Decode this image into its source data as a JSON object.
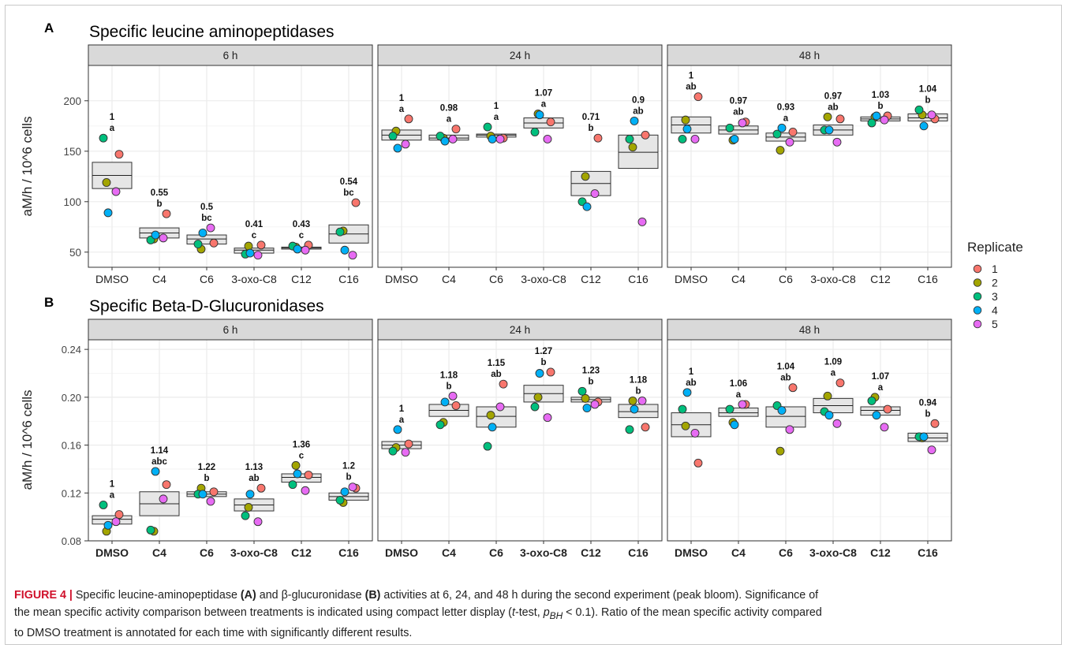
{
  "colors": {
    "rep1": "#F8766D",
    "rep2": "#A3A500",
    "rep3": "#00BF7D",
    "rep4": "#00B0F6",
    "rep5": "#E76BF3",
    "box_fill": "#e6e6e6",
    "strip": "#d9d9d9",
    "grid": "#ebebeb",
    "caption_label": "#d0112b"
  },
  "legend": {
    "title": "Replicate",
    "items": [
      "1",
      "2",
      "3",
      "4",
      "5"
    ]
  },
  "caption": {
    "label": "FIGURE 4 |",
    "line1_a": " Specific leucine-aminopeptidase ",
    "line1_b": "(A)",
    "line1_c": " and β-glucuronidase ",
    "line1_d": "(B)",
    "line1_e": " activities at 6, 24, and 48 h during the second experiment (peak bloom). Significance of",
    "line2_a": "the mean specific activity comparison between treatments is indicated using compact letter display (",
    "line2_t": "t",
    "line2_b": "-test, ",
    "line2_p": "p",
    "line2_sub": "BH",
    "line2_c": " < 0.1). Ratio of the mean specific activity compared",
    "line3": "to DMSO treatment is annotated for each time with significantly different results.",
    "line4": "results."
  },
  "chart_data": [
    {
      "type": "scatter",
      "panel_letter": "A",
      "title": "Specific leucine aminopeptidases",
      "ylabel": "aM/h / 10^6 cells",
      "xlabel": "",
      "ylim": [
        35,
        235
      ],
      "yticks": [
        50,
        100,
        150,
        200
      ],
      "ytick_labels": [
        "50",
        "100",
        "150",
        "200"
      ],
      "categories": [
        "DMSO",
        "C4",
        "C6",
        "3-oxo-C8",
        "C12",
        "C16"
      ],
      "facets": [
        {
          "name": "6 h",
          "boxes": [
            {
              "mean": 126,
              "low": 113,
              "high": 139,
              "ratio": "1",
              "letters": "a"
            },
            {
              "mean": 69,
              "low": 64,
              "high": 74,
              "ratio": "0.55",
              "letters": "b"
            },
            {
              "mean": 63,
              "low": 58,
              "high": 67,
              "ratio": "0.5",
              "letters": "bc"
            },
            {
              "mean": 52,
              "low": 49,
              "high": 54,
              "ratio": "0.41",
              "letters": "c"
            },
            {
              "mean": 54,
              "low": 53,
              "high": 55,
              "ratio": "0.43",
              "letters": "c"
            },
            {
              "mean": 68,
              "low": 59,
              "high": 77,
              "ratio": "0.54",
              "letters": "bc"
            }
          ],
          "points": [
            [
              147,
              119,
              163,
              89,
              110
            ],
            [
              88,
              63,
              62,
              67,
              64
            ],
            [
              59,
              53,
              58,
              69,
              74
            ],
            [
              57,
              56,
              48,
              49,
              47
            ],
            [
              57,
              55,
              56,
              53,
              52
            ],
            [
              99,
              71,
              70,
              52,
              47
            ]
          ]
        },
        {
          "name": "24 h",
          "boxes": [
            {
              "mean": 166,
              "low": 161,
              "high": 171,
              "ratio": "1",
              "letters": "a"
            },
            {
              "mean": 163,
              "low": 161,
              "high": 166,
              "ratio": "0.98",
              "letters": "a"
            },
            {
              "mean": 166,
              "low": 164,
              "high": 167,
              "ratio": "1",
              "letters": "a"
            },
            {
              "mean": 178,
              "low": 173,
              "high": 183,
              "ratio": "1.07",
              "letters": "a"
            },
            {
              "mean": 118,
              "low": 106,
              "high": 130,
              "ratio": "0.71",
              "letters": "b"
            },
            {
              "mean": 149,
              "low": 133,
              "high": 166,
              "ratio": "0.9",
              "letters": "ab"
            }
          ],
          "points": [
            [
              182,
              170,
              165,
              153,
              157
            ],
            [
              172,
              163,
              165,
              160,
              162
            ],
            [
              163,
              165,
              174,
              162,
              162
            ],
            [
              179,
              187,
              169,
              186,
              162
            ],
            [
              163,
              125,
              100,
              95,
              108
            ],
            [
              166,
              154,
              162,
              180,
              80
            ]
          ]
        },
        {
          "name": "48 h",
          "boxes": [
            {
              "mean": 176,
              "low": 168,
              "high": 184,
              "ratio": "1",
              "letters": "ab"
            },
            {
              "mean": 171,
              "low": 167,
              "high": 175,
              "ratio": "0.97",
              "letters": "ab"
            },
            {
              "mean": 164,
              "low": 160,
              "high": 168,
              "ratio": "0.93",
              "letters": "a"
            },
            {
              "mean": 171,
              "low": 166,
              "high": 176,
              "ratio": "0.97",
              "letters": "ab"
            },
            {
              "mean": 182,
              "low": 180,
              "high": 184,
              "ratio": "1.03",
              "letters": "b"
            },
            {
              "mean": 183,
              "low": 180,
              "high": 187,
              "ratio": "1.04",
              "letters": "b"
            }
          ],
          "points": [
            [
              204,
              181,
              162,
              172,
              162
            ],
            [
              179,
              161,
              173,
              162,
              178
            ],
            [
              169,
              151,
              167,
              173,
              159
            ],
            [
              182,
              184,
              171,
              171,
              159
            ],
            [
              185,
              184,
              178,
              185,
              181
            ],
            [
              182,
              186,
              191,
              175,
              186
            ]
          ]
        }
      ]
    },
    {
      "type": "scatter",
      "panel_letter": "B",
      "title": "Specific Beta-D-Glucuronidases",
      "ylabel": "aM/h / 10^6 cells",
      "xlabel": "",
      "ylim": [
        0.08,
        0.248
      ],
      "yticks": [
        0.08,
        0.12,
        0.16,
        0.2,
        0.24
      ],
      "ytick_labels": [
        "0.08",
        "0.12",
        "0.16",
        "0.20",
        "0.24"
      ],
      "categories": [
        "DMSO",
        "C4",
        "C6",
        "3-oxo-C8",
        "C12",
        "C16"
      ],
      "facets": [
        {
          "name": "6 h",
          "boxes": [
            {
              "mean": 0.098,
              "low": 0.094,
              "high": 0.101,
              "ratio": "1",
              "letters": "a"
            },
            {
              "mean": 0.111,
              "low": 0.101,
              "high": 0.121,
              "ratio": "1.14",
              "letters": "abc"
            },
            {
              "mean": 0.119,
              "low": 0.117,
              "high": 0.121,
              "ratio": "1.22",
              "letters": "b"
            },
            {
              "mean": 0.11,
              "low": 0.105,
              "high": 0.115,
              "ratio": "1.13",
              "letters": "ab"
            },
            {
              "mean": 0.133,
              "low": 0.129,
              "high": 0.136,
              "ratio": "1.36",
              "letters": "c"
            },
            {
              "mean": 0.117,
              "low": 0.114,
              "high": 0.12,
              "ratio": "1.2",
              "letters": "b"
            }
          ],
          "points": [
            [
              0.102,
              0.088,
              0.11,
              0.093,
              0.096
            ],
            [
              0.127,
              0.088,
              0.089,
              0.138,
              0.115
            ],
            [
              0.121,
              0.124,
              0.119,
              0.119,
              0.113
            ],
            [
              0.124,
              0.108,
              0.101,
              0.119,
              0.096
            ],
            [
              0.135,
              0.143,
              0.127,
              0.136,
              0.122
            ],
            [
              0.124,
              0.112,
              0.114,
              0.121,
              0.125
            ]
          ]
        },
        {
          "name": "24 h",
          "boxes": [
            {
              "mean": 0.16,
              "low": 0.157,
              "high": 0.163,
              "ratio": "1",
              "letters": "a"
            },
            {
              "mean": 0.189,
              "low": 0.184,
              "high": 0.194,
              "ratio": "1.18",
              "letters": "b"
            },
            {
              "mean": 0.184,
              "low": 0.175,
              "high": 0.192,
              "ratio": "1.15",
              "letters": "ab"
            },
            {
              "mean": 0.203,
              "low": 0.196,
              "high": 0.21,
              "ratio": "1.27",
              "letters": "b"
            },
            {
              "mean": 0.198,
              "low": 0.196,
              "high": 0.2,
              "ratio": "1.23",
              "letters": "b"
            },
            {
              "mean": 0.188,
              "low": 0.183,
              "high": 0.194,
              "ratio": "1.18",
              "letters": "b"
            }
          ],
          "points": [
            [
              0.161,
              0.158,
              0.155,
              0.173,
              0.154
            ],
            [
              0.193,
              0.179,
              0.177,
              0.196,
              0.201
            ],
            [
              0.211,
              0.185,
              0.159,
              0.175,
              0.192
            ],
            [
              0.221,
              0.2,
              0.192,
              0.22,
              0.183
            ],
            [
              0.196,
              0.199,
              0.205,
              0.191,
              0.194
            ],
            [
              0.175,
              0.197,
              0.173,
              0.19,
              0.197
            ]
          ]
        },
        {
          "name": "48 h",
          "boxes": [
            {
              "mean": 0.177,
              "low": 0.167,
              "high": 0.187,
              "ratio": "1",
              "letters": "ab"
            },
            {
              "mean": 0.187,
              "low": 0.184,
              "high": 0.191,
              "ratio": "1.06",
              "letters": "a"
            },
            {
              "mean": 0.184,
              "low": 0.175,
              "high": 0.192,
              "ratio": "1.04",
              "letters": "ab"
            },
            {
              "mean": 0.193,
              "low": 0.187,
              "high": 0.199,
              "ratio": "1.09",
              "letters": "a"
            },
            {
              "mean": 0.189,
              "low": 0.185,
              "high": 0.192,
              "ratio": "1.07",
              "letters": "a"
            },
            {
              "mean": 0.166,
              "low": 0.163,
              "high": 0.17,
              "ratio": "0.94",
              "letters": "b"
            }
          ],
          "points": [
            [
              0.145,
              0.176,
              0.19,
              0.204,
              0.17
            ],
            [
              0.194,
              0.179,
              0.19,
              0.177,
              0.194
            ],
            [
              0.208,
              0.155,
              0.193,
              0.189,
              0.173
            ],
            [
              0.212,
              0.201,
              0.188,
              0.185,
              0.178
            ],
            [
              0.19,
              0.2,
              0.197,
              0.185,
              0.175
            ],
            [
              0.178,
              0.166,
              0.167,
              0.167,
              0.156
            ]
          ]
        }
      ]
    }
  ]
}
